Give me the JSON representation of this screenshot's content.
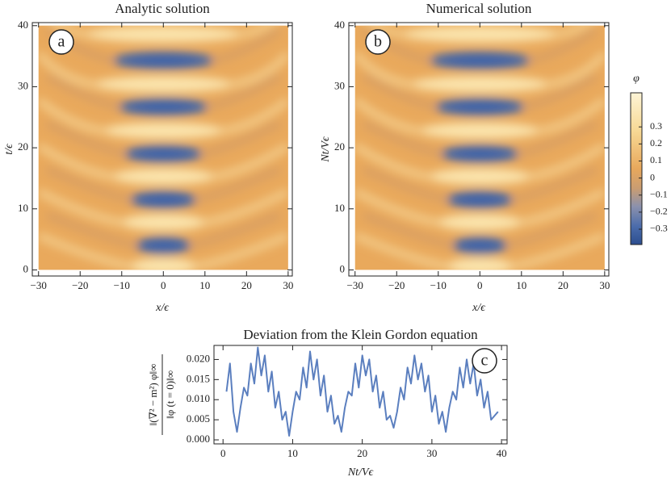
{
  "chart_data": [
    {
      "type": "heatmap",
      "title": "Analytic solution",
      "annotation": "a",
      "xlabel": "x/ϵ",
      "ylabel": "t/ϵ",
      "xlim": [
        -31.5,
        31
      ],
      "ylim": [
        -1,
        40.5
      ],
      "xticks": [
        {
          "value": -30,
          "label": "−30"
        },
        {
          "value": -20,
          "label": "−20"
        },
        {
          "value": -10,
          "label": "−10"
        },
        0,
        10,
        20,
        30
      ],
      "yticks": [
        0,
        10,
        20,
        30,
        40
      ]
    },
    {
      "type": "heatmap",
      "title": "Numerical solution",
      "annotation": "b",
      "xlabel": "x/ϵ",
      "ylabel": "Nt/Vϵ",
      "xlim": [
        -31.5,
        31
      ],
      "ylim": [
        -1,
        40.5
      ],
      "xticks": [
        {
          "value": -30,
          "label": "−30"
        },
        {
          "value": -20,
          "label": "−20"
        },
        {
          "value": -10,
          "label": "−10"
        },
        0,
        10,
        20,
        30
      ],
      "yticks": [
        0,
        10,
        20,
        30,
        40
      ]
    },
    {
      "type": "colorbar",
      "label": "φ",
      "ylim": [
        -0.39,
        0.5
      ],
      "yticks": [
        0.3,
        0.2,
        0.1,
        0,
        {
          "value": -0.1,
          "label": "−0.1"
        },
        {
          "value": -0.2,
          "label": "−0.2"
        },
        {
          "value": -0.3,
          "label": "−0.3"
        }
      ]
    },
    {
      "type": "line",
      "title": "Deviation from the Klein Gordon equation",
      "annotation": "c",
      "xlabel": "Nt/Vϵ",
      "ylabel_numerator": "‖(∇² − m²) φ‖∞",
      "ylabel_denominator": "‖φ (t = 0)‖∞",
      "color": "#5b7fbf",
      "xlim": [
        -1.3,
        40.8
      ],
      "ylim": [
        -0.001,
        0.0235
      ],
      "xticks": [
        0,
        10,
        20,
        30,
        40
      ],
      "yticks": [
        {
          "value": 0,
          "label": "0.000"
        },
        {
          "value": 0.005,
          "label": "0.005"
        },
        {
          "value": 0.01,
          "label": "0.010"
        },
        {
          "value": 0.015,
          "label": "0.015"
        },
        {
          "value": 0.02,
          "label": "0.020"
        }
      ],
      "x": [
        0.5,
        1,
        1.5,
        2,
        2.5,
        3,
        3.5,
        4,
        4.5,
        5,
        5.5,
        6,
        6.5,
        7,
        7.5,
        8,
        8.5,
        9,
        9.5,
        10,
        10.5,
        11,
        11.5,
        12,
        12.5,
        13,
        13.5,
        14,
        14.5,
        15,
        15.5,
        16,
        16.5,
        17,
        17.5,
        18,
        18.5,
        19,
        19.5,
        20,
        20.5,
        21,
        21.5,
        22,
        22.5,
        23,
        23.5,
        24,
        24.5,
        25,
        25.5,
        26,
        26.5,
        27,
        27.5,
        28,
        28.5,
        29,
        29.5,
        30,
        30.5,
        31,
        31.5,
        32,
        32.5,
        33,
        33.5,
        34,
        34.5,
        35,
        35.5,
        36,
        36.5,
        37,
        37.5,
        38,
        38.5,
        39,
        39.5
      ],
      "values": [
        0.012,
        0.019,
        0.007,
        0.002,
        0.008,
        0.013,
        0.011,
        0.019,
        0.014,
        0.023,
        0.016,
        0.021,
        0.012,
        0.017,
        0.008,
        0.012,
        0.005,
        0.007,
        0.001,
        0.007,
        0.012,
        0.01,
        0.018,
        0.013,
        0.022,
        0.015,
        0.02,
        0.011,
        0.016,
        0.007,
        0.011,
        0.004,
        0.006,
        0.002,
        0.008,
        0.012,
        0.011,
        0.019,
        0.013,
        0.021,
        0.016,
        0.02,
        0.012,
        0.016,
        0.008,
        0.012,
        0.005,
        0.006,
        0.003,
        0.007,
        0.013,
        0.01,
        0.018,
        0.014,
        0.021,
        0.015,
        0.019,
        0.012,
        0.016,
        0.007,
        0.011,
        0.004,
        0.007,
        0.002,
        0.008,
        0.012,
        0.01,
        0.018,
        0.013,
        0.02,
        0.014,
        0.019,
        0.011,
        0.015,
        0.008,
        0.012,
        0.005,
        0.006,
        0.007
      ]
    }
  ]
}
